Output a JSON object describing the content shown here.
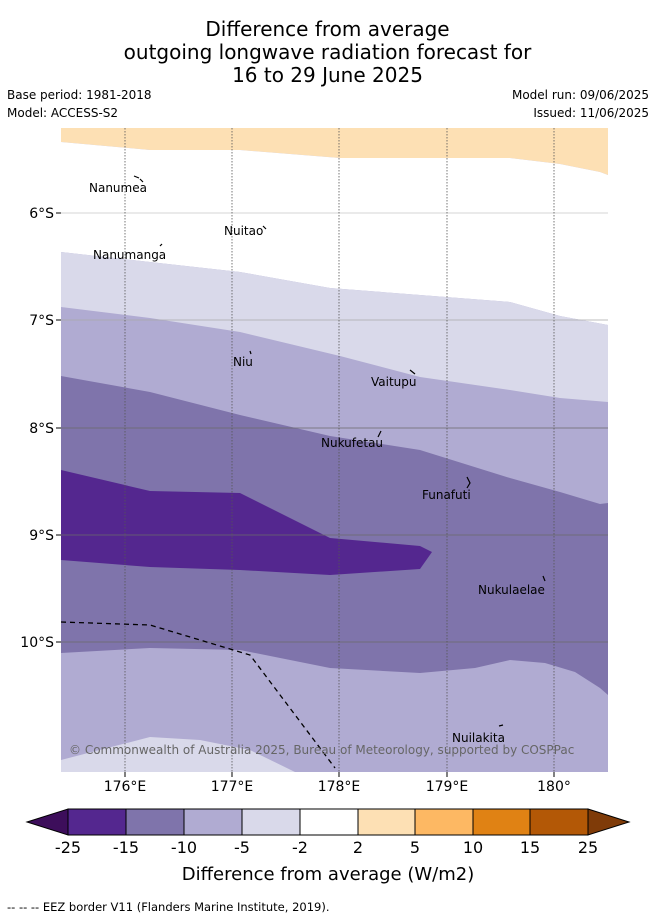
{
  "title": {
    "line1": "Difference from average",
    "line2": "outgoing longwave radiation forecast for",
    "line3": "16 to 29 June 2025"
  },
  "meta": {
    "base_period": "Base period: 1981-2018",
    "model": "Model: ACCESS-S2",
    "model_run": "Model run: 09/06/2025",
    "issued": "Issued: 11/06/2025"
  },
  "map": {
    "lon_ticks": [
      "176°E",
      "177°E",
      "178°E",
      "179°E",
      "180°"
    ],
    "lat_ticks": [
      "6°S",
      "7°S",
      "8°S",
      "9°S",
      "10°S"
    ],
    "islands": [
      {
        "name": "Nanumea"
      },
      {
        "name": "Nuitao"
      },
      {
        "name": "Nanumanga"
      },
      {
        "name": "Niu"
      },
      {
        "name": "Vaitupu"
      },
      {
        "name": "Nukufetau"
      },
      {
        "name": "Funafuti"
      },
      {
        "name": "Nukulaelae"
      },
      {
        "name": "Nuilakita"
      }
    ],
    "copyright": "© Commonwealth of Australia 2025, Bureau of Meteorology, supported by COSPPac"
  },
  "colorbar": {
    "labels": [
      "-25",
      "-15",
      "-10",
      "-5",
      "-2",
      "2",
      "5",
      "10",
      "15",
      "25"
    ],
    "colors": [
      "#3d0e5b",
      "#54278f",
      "#7f74ab",
      "#b0abd2",
      "#d9d9ea",
      "#ffffff",
      "#fde0b4",
      "#fdb863",
      "#e08214",
      "#b35806",
      "#7f3b08"
    ],
    "title": "Difference from average (W/m2)"
  },
  "footnote": "-- -- -- EEZ border V11 (Flanders Marine Institute, 2019)."
}
